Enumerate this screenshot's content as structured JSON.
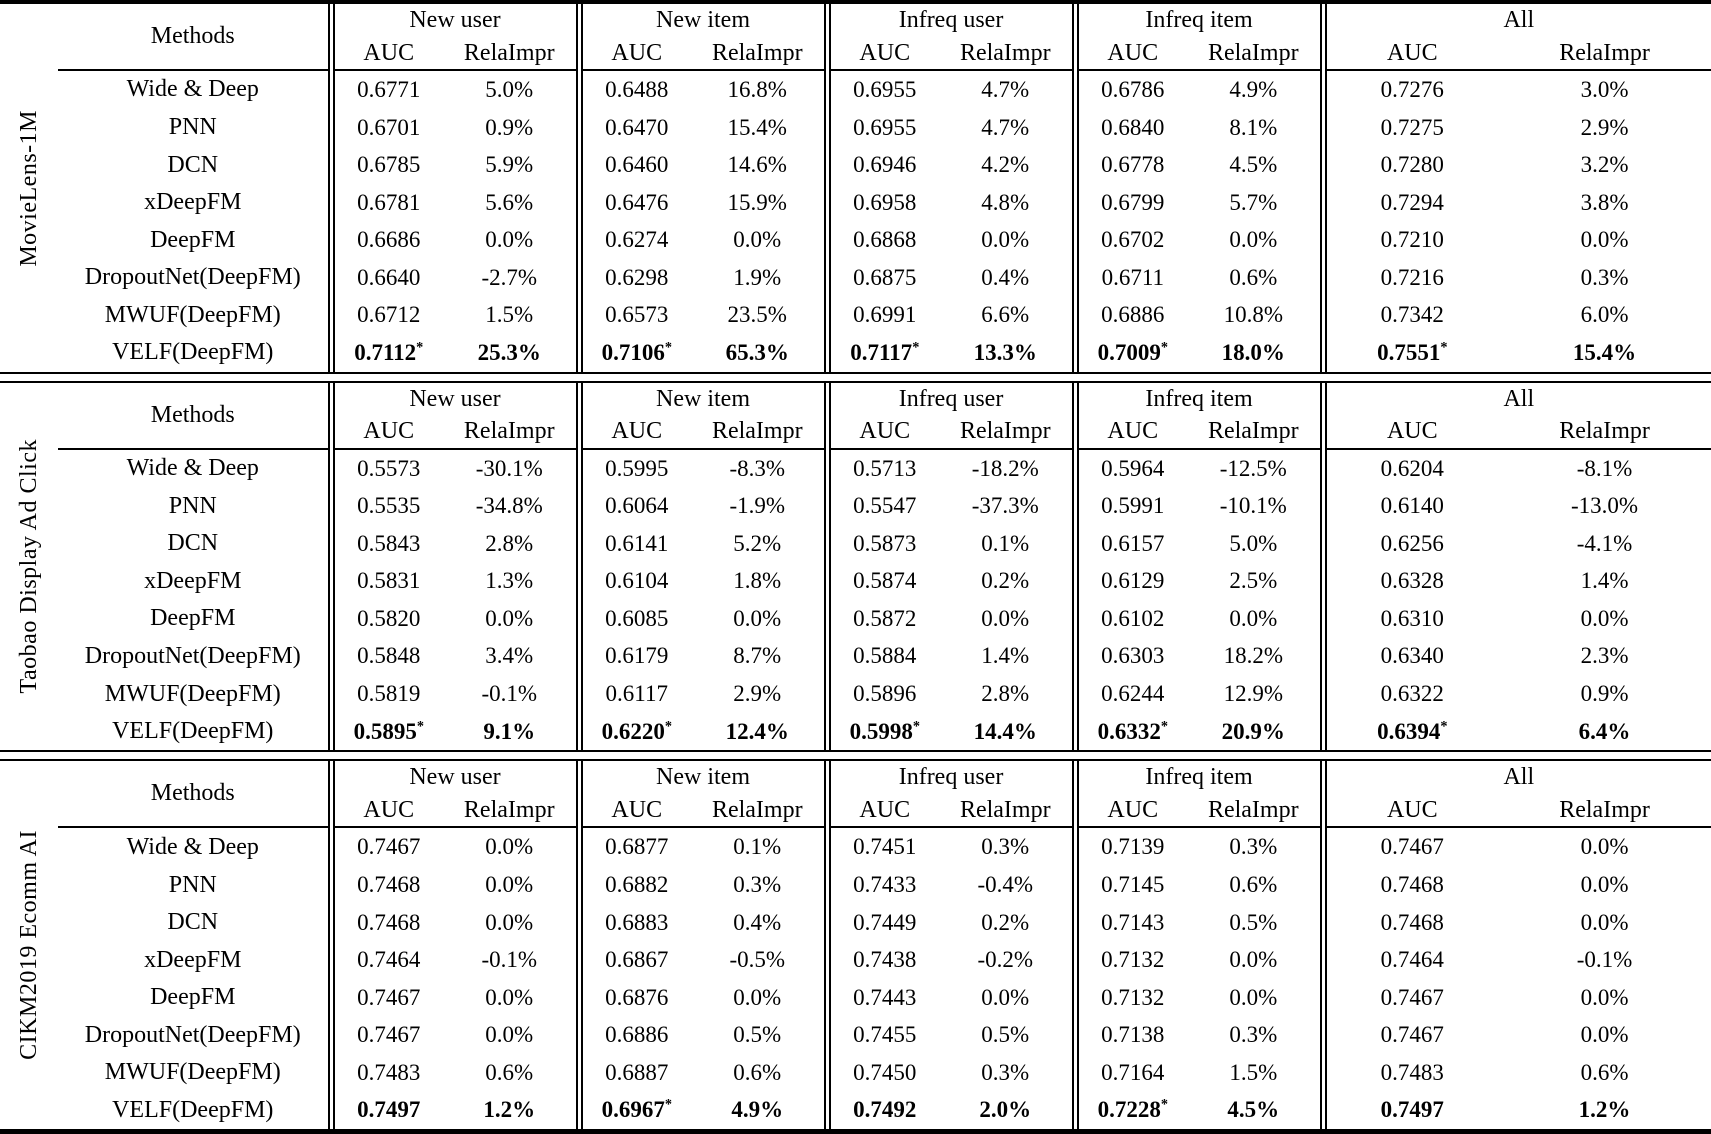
{
  "table": {
    "columns": {
      "methods_label": "Methods",
      "groups": [
        "New user",
        "New item",
        "Infreq user",
        "Infreq item",
        "All"
      ],
      "sub_columns": [
        "AUC",
        "RelaImpr"
      ]
    },
    "sections": [
      {
        "dataset": "MovieLens-1M",
        "rows": [
          {
            "method": "Wide & Deep",
            "bold": false,
            "cells": [
              [
                "0.6771",
                "5.0%"
              ],
              [
                "0.6488",
                "16.8%"
              ],
              [
                "0.6955",
                "4.7%"
              ],
              [
                "0.6786",
                "4.9%"
              ],
              [
                "0.7276",
                "3.0%"
              ]
            ]
          },
          {
            "method": "PNN",
            "bold": false,
            "cells": [
              [
                "0.6701",
                "0.9%"
              ],
              [
                "0.6470",
                "15.4%"
              ],
              [
                "0.6955",
                "4.7%"
              ],
              [
                "0.6840",
                "8.1%"
              ],
              [
                "0.7275",
                "2.9%"
              ]
            ]
          },
          {
            "method": "DCN",
            "bold": false,
            "cells": [
              [
                "0.6785",
                "5.9%"
              ],
              [
                "0.6460",
                "14.6%"
              ],
              [
                "0.6946",
                "4.2%"
              ],
              [
                "0.6778",
                "4.5%"
              ],
              [
                "0.7280",
                "3.2%"
              ]
            ]
          },
          {
            "method": "xDeepFM",
            "bold": false,
            "cells": [
              [
                "0.6781",
                "5.6%"
              ],
              [
                "0.6476",
                "15.9%"
              ],
              [
                "0.6958",
                "4.8%"
              ],
              [
                "0.6799",
                "5.7%"
              ],
              [
                "0.7294",
                "3.8%"
              ]
            ]
          },
          {
            "method": "DeepFM",
            "bold": false,
            "cells": [
              [
                "0.6686",
                "0.0%"
              ],
              [
                "0.6274",
                "0.0%"
              ],
              [
                "0.6868",
                "0.0%"
              ],
              [
                "0.6702",
                "0.0%"
              ],
              [
                "0.7210",
                "0.0%"
              ]
            ]
          },
          {
            "method": "DropoutNet(DeepFM)",
            "bold": false,
            "cells": [
              [
                "0.6640",
                "-2.7%"
              ],
              [
                "0.6298",
                "1.9%"
              ],
              [
                "0.6875",
                "0.4%"
              ],
              [
                "0.6711",
                "0.6%"
              ],
              [
                "0.7216",
                "0.3%"
              ]
            ]
          },
          {
            "method": "MWUF(DeepFM)",
            "bold": false,
            "cells": [
              [
                "0.6712",
                "1.5%"
              ],
              [
                "0.6573",
                "23.5%"
              ],
              [
                "0.6991",
                "6.6%"
              ],
              [
                "0.6886",
                "10.8%"
              ],
              [
                "0.7342",
                "6.0%"
              ]
            ]
          },
          {
            "method": "VELF(DeepFM)",
            "bold": true,
            "cells": [
              [
                "0.7112*",
                "25.3%"
              ],
              [
                "0.7106*",
                "65.3%"
              ],
              [
                "0.7117*",
                "13.3%"
              ],
              [
                "0.7009*",
                "18.0%"
              ],
              [
                "0.7551*",
                "15.4%"
              ]
            ]
          }
        ]
      },
      {
        "dataset": "Taobao Display Ad Click",
        "rows": [
          {
            "method": "Wide & Deep",
            "bold": false,
            "cells": [
              [
                "0.5573",
                "-30.1%"
              ],
              [
                "0.5995",
                "-8.3%"
              ],
              [
                "0.5713",
                "-18.2%"
              ],
              [
                "0.5964",
                "-12.5%"
              ],
              [
                "0.6204",
                "-8.1%"
              ]
            ]
          },
          {
            "method": "PNN",
            "bold": false,
            "cells": [
              [
                "0.5535",
                "-34.8%"
              ],
              [
                "0.6064",
                "-1.9%"
              ],
              [
                "0.5547",
                "-37.3%"
              ],
              [
                "0.5991",
                "-10.1%"
              ],
              [
                "0.6140",
                "-13.0%"
              ]
            ]
          },
          {
            "method": "DCN",
            "bold": false,
            "cells": [
              [
                "0.5843",
                "2.8%"
              ],
              [
                "0.6141",
                "5.2%"
              ],
              [
                "0.5873",
                "0.1%"
              ],
              [
                "0.6157",
                "5.0%"
              ],
              [
                "0.6256",
                "-4.1%"
              ]
            ]
          },
          {
            "method": "xDeepFM",
            "bold": false,
            "cells": [
              [
                "0.5831",
                "1.3%"
              ],
              [
                "0.6104",
                "1.8%"
              ],
              [
                "0.5874",
                "0.2%"
              ],
              [
                "0.6129",
                "2.5%"
              ],
              [
                "0.6328",
                "1.4%"
              ]
            ]
          },
          {
            "method": "DeepFM",
            "bold": false,
            "cells": [
              [
                "0.5820",
                "0.0%"
              ],
              [
                "0.6085",
                "0.0%"
              ],
              [
                "0.5872",
                "0.0%"
              ],
              [
                "0.6102",
                "0.0%"
              ],
              [
                "0.6310",
                "0.0%"
              ]
            ]
          },
          {
            "method": "DropoutNet(DeepFM)",
            "bold": false,
            "cells": [
              [
                "0.5848",
                "3.4%"
              ],
              [
                "0.6179",
                "8.7%"
              ],
              [
                "0.5884",
                "1.4%"
              ],
              [
                "0.6303",
                "18.2%"
              ],
              [
                "0.6340",
                "2.3%"
              ]
            ]
          },
          {
            "method": "MWUF(DeepFM)",
            "bold": false,
            "cells": [
              [
                "0.5819",
                "-0.1%"
              ],
              [
                "0.6117",
                "2.9%"
              ],
              [
                "0.5896",
                "2.8%"
              ],
              [
                "0.6244",
                "12.9%"
              ],
              [
                "0.6322",
                "0.9%"
              ]
            ]
          },
          {
            "method": "VELF(DeepFM)",
            "bold": true,
            "cells": [
              [
                "0.5895*",
                "9.1%"
              ],
              [
                "0.6220*",
                "12.4%"
              ],
              [
                "0.5998*",
                "14.4%"
              ],
              [
                "0.6332*",
                "20.9%"
              ],
              [
                "0.6394*",
                "6.4%"
              ]
            ]
          }
        ]
      },
      {
        "dataset": "CIKM2019 Ecomm AI",
        "rows": [
          {
            "method": "Wide & Deep",
            "bold": false,
            "cells": [
              [
                "0.7467",
                "0.0%"
              ],
              [
                "0.6877",
                "0.1%"
              ],
              [
                "0.7451",
                "0.3%"
              ],
              [
                "0.7139",
                "0.3%"
              ],
              [
                "0.7467",
                "0.0%"
              ]
            ]
          },
          {
            "method": "PNN",
            "bold": false,
            "cells": [
              [
                "0.7468",
                "0.0%"
              ],
              [
                "0.6882",
                "0.3%"
              ],
              [
                "0.7433",
                "-0.4%"
              ],
              [
                "0.7145",
                "0.6%"
              ],
              [
                "0.7468",
                "0.0%"
              ]
            ]
          },
          {
            "method": "DCN",
            "bold": false,
            "cells": [
              [
                "0.7468",
                "0.0%"
              ],
              [
                "0.6883",
                "0.4%"
              ],
              [
                "0.7449",
                "0.2%"
              ],
              [
                "0.7143",
                "0.5%"
              ],
              [
                "0.7468",
                "0.0%"
              ]
            ]
          },
          {
            "method": "xDeepFM",
            "bold": false,
            "cells": [
              [
                "0.7464",
                "-0.1%"
              ],
              [
                "0.6867",
                "-0.5%"
              ],
              [
                "0.7438",
                "-0.2%"
              ],
              [
                "0.7132",
                "0.0%"
              ],
              [
                "0.7464",
                "-0.1%"
              ]
            ]
          },
          {
            "method": "DeepFM",
            "bold": false,
            "cells": [
              [
                "0.7467",
                "0.0%"
              ],
              [
                "0.6876",
                "0.0%"
              ],
              [
                "0.7443",
                "0.0%"
              ],
              [
                "0.7132",
                "0.0%"
              ],
              [
                "0.7467",
                "0.0%"
              ]
            ]
          },
          {
            "method": "DropoutNet(DeepFM)",
            "bold": false,
            "cells": [
              [
                "0.7467",
                "0.0%"
              ],
              [
                "0.6886",
                "0.5%"
              ],
              [
                "0.7455",
                "0.5%"
              ],
              [
                "0.7138",
                "0.3%"
              ],
              [
                "0.7467",
                "0.0%"
              ]
            ]
          },
          {
            "method": "MWUF(DeepFM)",
            "bold": false,
            "cells": [
              [
                "0.7483",
                "0.6%"
              ],
              [
                "0.6887",
                "0.6%"
              ],
              [
                "0.7450",
                "0.3%"
              ],
              [
                "0.7164",
                "1.5%"
              ],
              [
                "0.7483",
                "0.6%"
              ]
            ]
          },
          {
            "method": "VELF(DeepFM)",
            "bold": true,
            "cells": [
              [
                "0.7497",
                "1.2%"
              ],
              [
                "0.6967*",
                "4.9%"
              ],
              [
                "0.7492",
                "2.0%"
              ],
              [
                "0.7228*",
                "4.5%"
              ],
              [
                "0.7497",
                "1.2%"
              ]
            ]
          }
        ]
      }
    ]
  }
}
